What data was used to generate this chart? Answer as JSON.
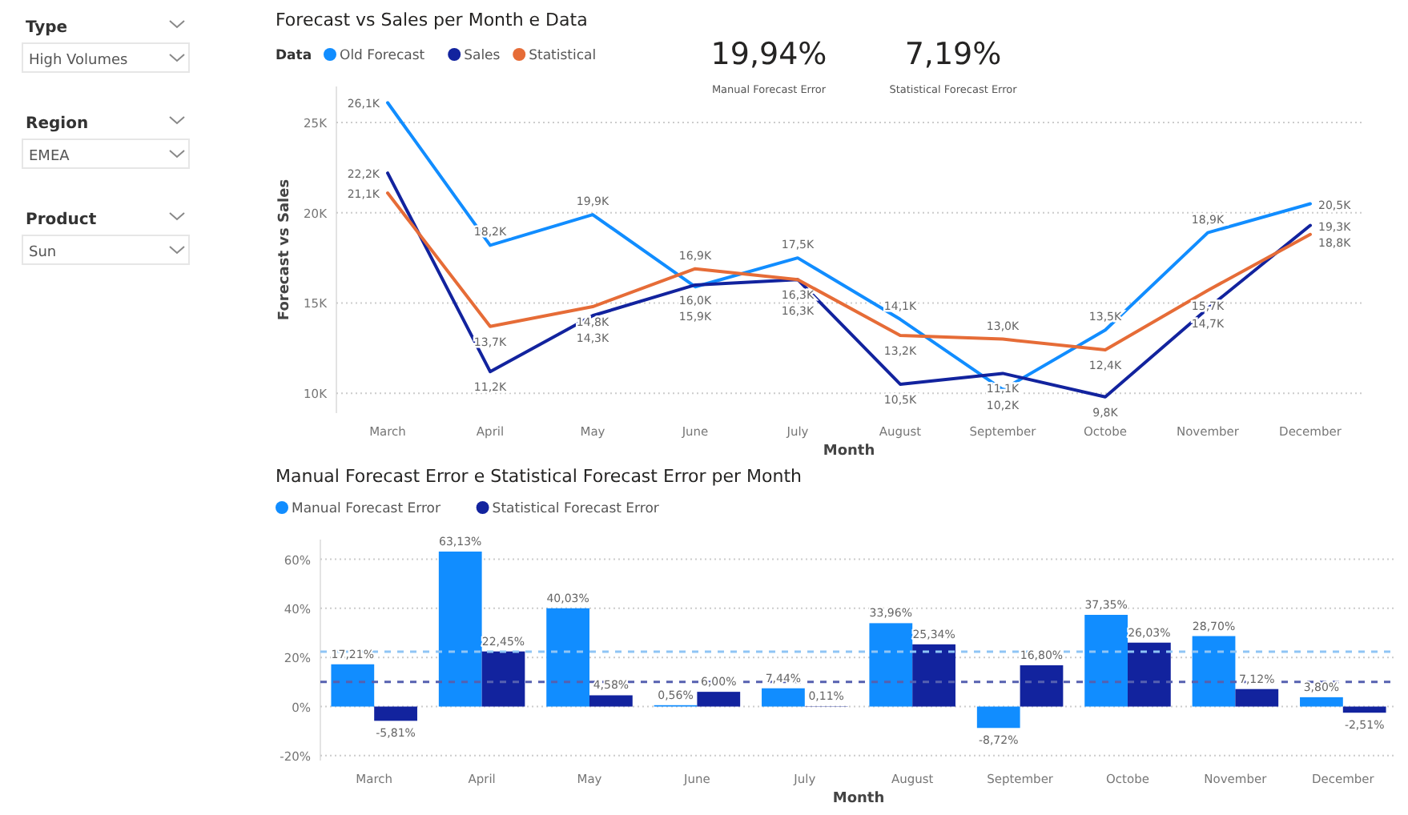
{
  "chart_data": [
    {
      "type": "other",
      "annotations": [
        "Type",
        "High Volumes",
        "Region",
        "EMEA",
        "Product",
        "Sun"
      ]
    },
    {
      "type": "other",
      "annotations": [
        "19,94%",
        "Manual Forecast Error",
        "7,19%",
        "Statistical Forecast Error"
      ]
    },
    {
      "type": "line",
      "title": "Forecast vs Sales per Month e Data",
      "xlabel": "Month",
      "ylabel": "Forecast vs Sales",
      "legend_title": "Data",
      "legend": "top left",
      "grid": "y",
      "categories": [
        "March",
        "April",
        "May",
        "June",
        "July",
        "August",
        "September",
        "Octobe",
        "November",
        "December"
      ],
      "ylim": [
        8900,
        27000
      ],
      "yticks": [
        {
          "value": 10000,
          "label": "10K"
        },
        {
          "value": 15000,
          "label": "15K"
        },
        {
          "value": 20000,
          "label": "20K"
        },
        {
          "value": 25000,
          "label": "25K"
        }
      ],
      "series": [
        {
          "name": "Old Forecast",
          "color": "#118dff",
          "values": [
            26100,
            18200,
            19900,
            15900,
            17500,
            14100,
            10200,
            13500,
            18900,
            20500
          ],
          "value_labels": [
            "26,1K",
            "18,2K",
            "19,9K",
            "15,9K",
            "17,5K",
            "14,1K",
            "10,2K",
            "13,5K",
            "18,9K",
            "20,5K"
          ]
        },
        {
          "name": "Sales",
          "color": "#12239e",
          "values": [
            22200,
            11200,
            14300,
            16000,
            16300,
            10500,
            11100,
            9800,
            14700,
            19300
          ],
          "value_labels": [
            "22,2K",
            "11,2K",
            "14,3K",
            "16,0K",
            "16,3K",
            "10,5K",
            "11,1K",
            "9,8K",
            "14,7K",
            "19,3K"
          ]
        },
        {
          "name": "Statistical",
          "color": "#e66c37",
          "values": [
            21100,
            13700,
            14800,
            16900,
            16300,
            13200,
            13000,
            12400,
            15700,
            18800
          ],
          "value_labels": [
            "21,1K",
            "13,7K",
            "14,8K",
            "16,9K",
            "16,3K",
            "13,2K",
            "13,0K",
            "12,4K",
            "15,7K",
            "18,8K"
          ]
        }
      ]
    },
    {
      "type": "bar",
      "title": "Manual Forecast Error e Statistical Forecast Error per Month",
      "xlabel": "Month",
      "legend": "top left",
      "grid": "y",
      "categories": [
        "March",
        "April",
        "May",
        "June",
        "July",
        "August",
        "September",
        "Octobe",
        "November",
        "December"
      ],
      "ylim": [
        -22,
        68
      ],
      "yticks": [
        {
          "value": -20,
          "label": "-20%"
        },
        {
          "value": 0,
          "label": "0%"
        },
        {
          "value": 20,
          "label": "20%"
        },
        {
          "value": 40,
          "label": "40%"
        },
        {
          "value": 60,
          "label": "60%"
        }
      ],
      "series": [
        {
          "name": "Manual Forecast Error",
          "color": "#118dff",
          "values": [
            17.21,
            63.13,
            40.03,
            0.56,
            7.44,
            33.96,
            -8.72,
            37.35,
            28.7,
            3.8
          ],
          "value_labels": [
            "17,21%",
            "63,13%",
            "40,03%",
            "0,56%",
            "7,44%",
            "33,96%",
            "-8,72%",
            "37,35%",
            "28,70%",
            "3,80%"
          ]
        },
        {
          "name": "Statistical Forecast Error",
          "color": "#12239e",
          "values": [
            -5.81,
            22.45,
            4.58,
            6.0,
            0.11,
            25.34,
            16.8,
            26.03,
            7.12,
            -2.51
          ],
          "value_labels": [
            "-5,81%",
            "22,45%",
            "4,58%",
            "6,00%",
            "0,11%",
            "25,34%",
            "16,80%",
            "26,03%",
            "7,12%",
            "-2,51%"
          ]
        }
      ],
      "ref_lines": [
        {
          "axis": "y",
          "value": 22.35,
          "color": "#8fc5f5",
          "line_style": "dashed"
        },
        {
          "axis": "y",
          "value": 10.01,
          "color": "#5560b0",
          "line_style": "dashed"
        }
      ]
    }
  ]
}
